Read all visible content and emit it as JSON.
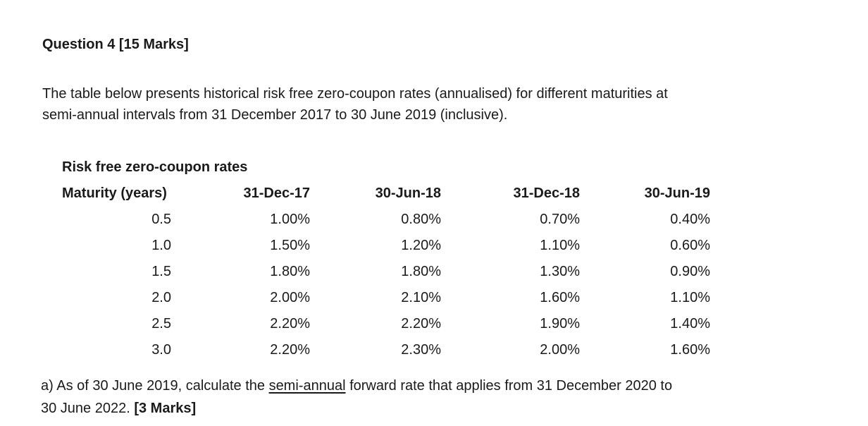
{
  "page": {
    "background": "#ffffff",
    "text_color": "#1a1a1a"
  },
  "question": {
    "heading": "Question 4 [15 Marks]",
    "intro_line1": "The table below presents historical risk free zero-coupon rates (annualised) for different maturities at",
    "intro_line2": "semi-annual intervals from 31 December 2017 to 30 June 2019 (inclusive)."
  },
  "table": {
    "title": "Risk free zero-coupon rates",
    "columns": [
      "Maturity (years)",
      "31-Dec-17",
      "30-Jun-18",
      "31-Dec-18",
      "30-Jun-19"
    ],
    "rows": [
      [
        "0.5",
        "1.00%",
        "0.80%",
        "0.70%",
        "0.40%"
      ],
      [
        "1.0",
        "1.50%",
        "1.20%",
        "1.10%",
        "0.60%"
      ],
      [
        "1.5",
        "1.80%",
        "1.80%",
        "1.30%",
        "0.90%"
      ],
      [
        "2.0",
        "2.00%",
        "2.10%",
        "1.60%",
        "1.10%"
      ],
      [
        "2.5",
        "2.20%",
        "2.20%",
        "1.90%",
        "1.40%"
      ],
      [
        "3.0",
        "2.20%",
        "2.30%",
        "2.00%",
        "1.60%"
      ]
    ]
  },
  "part_a": {
    "prefix": "a) As of 30 June 2019, calculate the ",
    "underlined_term": "semi-annual",
    "continuation": " forward rate that applies from 31 December 2020 to",
    "line2_text": "30 June 2022. ",
    "marks": "[3 Marks]"
  }
}
